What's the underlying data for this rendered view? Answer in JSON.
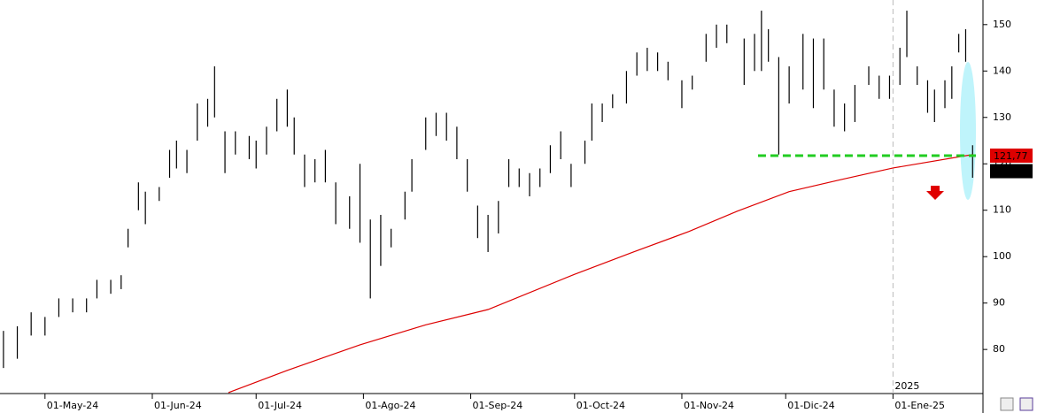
{
  "chart_data": {
    "type": "ohlc",
    "xlim": [
      -13,
      271
    ],
    "ylim": [
      70.5,
      155.3
    ],
    "yticks": [
      80,
      90,
      100,
      110,
      120,
      130,
      140,
      150
    ],
    "xticks": [
      {
        "value": 0,
        "label": "01-May-24"
      },
      {
        "value": 31,
        "label": "01-Jun-24"
      },
      {
        "value": 61,
        "label": "01-Jul-24"
      },
      {
        "value": 92,
        "label": "01-Ago-24"
      },
      {
        "value": 123,
        "label": "01-Sep-24"
      },
      {
        "value": 153,
        "label": "01-Oct-24"
      },
      {
        "value": 184,
        "label": "01-Nov-24"
      },
      {
        "value": 214,
        "label": "01-Dic-24"
      },
      {
        "value": 245,
        "label": "01-Ene-25"
      }
    ],
    "color": "#000000",
    "x": [
      -12,
      -8,
      -4,
      0,
      4,
      8,
      12,
      15,
      19,
      22,
      24,
      27,
      29,
      33,
      36,
      38,
      41,
      44,
      47,
      49,
      52,
      55,
      59,
      61,
      64,
      67,
      70,
      72,
      75,
      78,
      81,
      84,
      88,
      91,
      94,
      97,
      100,
      104,
      106,
      110,
      113,
      116,
      119,
      122,
      125,
      128,
      131,
      134,
      137,
      140,
      143,
      146,
      149,
      152,
      156,
      158,
      161,
      164,
      168,
      171,
      174,
      177,
      180,
      184,
      187,
      191,
      194,
      197,
      202,
      205,
      207,
      209,
      212,
      215,
      219,
      222,
      225,
      228,
      231,
      234,
      238,
      241,
      244,
      247,
      249,
      252,
      255,
      257,
      260,
      262,
      264,
      266,
      268
    ],
    "low": [
      76,
      78,
      83,
      83,
      87,
      88,
      88,
      91,
      92,
      93,
      102,
      110,
      107,
      112,
      117,
      119,
      118,
      125,
      128,
      130,
      118,
      122,
      121,
      119,
      122,
      127,
      128,
      122,
      115,
      116,
      116,
      107,
      106,
      103,
      91,
      98,
      102,
      108,
      114,
      123,
      126,
      125,
      121,
      114,
      104,
      101,
      105,
      115,
      115,
      113,
      115,
      118,
      121,
      115,
      120,
      125,
      129,
      132,
      133,
      139,
      140,
      140,
      138,
      132,
      136,
      142,
      145,
      146,
      137,
      140,
      140,
      142,
      122,
      133,
      136,
      132,
      136,
      128,
      127,
      129,
      137,
      134,
      134,
      137,
      143,
      137,
      131,
      129,
      132,
      134,
      144,
      142,
      117
    ],
    "high": [
      84,
      85,
      88,
      87,
      91,
      91,
      91,
      95,
      95,
      96,
      106,
      116,
      114,
      115,
      123,
      125,
      123,
      133,
      134,
      141,
      127,
      127,
      126,
      125,
      128,
      134,
      136,
      130,
      122,
      121,
      123,
      116,
      113,
      120,
      108,
      109,
      106,
      114,
      121,
      130,
      131,
      131,
      128,
      121,
      111,
      109,
      112,
      121,
      119,
      118,
      119,
      124,
      127,
      120,
      125,
      133,
      133,
      135,
      140,
      144,
      145,
      144,
      142,
      138,
      139,
      148,
      150,
      150,
      147,
      148,
      153,
      149,
      143,
      141,
      148,
      147,
      147,
      136,
      133,
      137,
      141,
      139,
      139,
      145,
      153,
      141,
      138,
      136,
      138,
      141,
      148,
      149,
      124
    ],
    "moving_average": {
      "color": "#dd0000",
      "x": [
        53,
        70,
        91,
        110,
        128,
        153,
        170,
        186,
        200,
        215,
        230,
        245,
        268
      ],
      "values": [
        70.7,
        75.5,
        81,
        85.3,
        88.6,
        96.2,
        101,
        105.4,
        109.8,
        114,
        116.6,
        119.1,
        122
      ]
    },
    "level_color": "#22cc22",
    "price_labels": [
      {
        "value": 121.77,
        "label": "121,77"
      },
      {
        "value": 118.42,
        "label": "118,42"
      }
    ],
    "year_marker": {
      "value": 245,
      "label": "2025"
    }
  }
}
